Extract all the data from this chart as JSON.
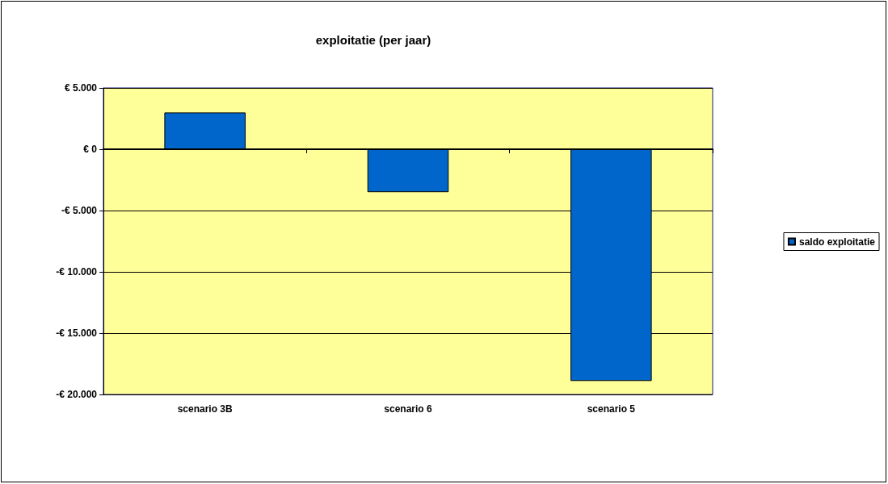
{
  "chart_data": {
    "type": "bar",
    "title": "exploitatie (per jaar)",
    "categories": [
      "scenario 3B",
      "scenario 6",
      "scenario 5"
    ],
    "series": [
      {
        "name": "saldo exploitatie",
        "color": "#0066cc",
        "values": [
          3000,
          -3500,
          -18900
        ]
      }
    ],
    "ylim": [
      -20000,
      5000
    ],
    "yticks": [
      {
        "value": -20000,
        "label": "-€ 20.000"
      },
      {
        "value": -15000,
        "label": "-€ 15.000"
      },
      {
        "value": -10000,
        "label": "-€ 10.000"
      },
      {
        "value": -5000,
        "label": "-€ 5.000"
      },
      {
        "value": 0,
        "label": "€ 0"
      },
      {
        "value": 5000,
        "label": "€ 5.000"
      }
    ],
    "grid": "y",
    "legend": "right"
  }
}
